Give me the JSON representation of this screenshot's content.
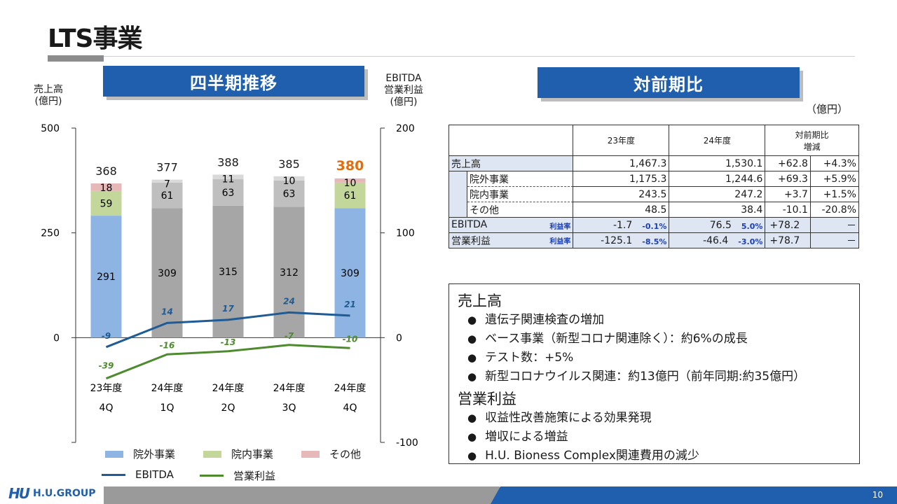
{
  "title": "LTS事業",
  "sections": {
    "left": "四半期推移",
    "right": "対前期比"
  },
  "axis_captions": {
    "left": "売上高\n(億円)",
    "right": "EBITDA\n営業利益\n(億円)"
  },
  "unit_label": "（億円）",
  "chart_data": {
    "type": "bar",
    "categories": [
      [
        "23年度",
        "4Q"
      ],
      [
        "24年度",
        "1Q"
      ],
      [
        "24年度",
        "2Q"
      ],
      [
        "24年度",
        "3Q"
      ],
      [
        "24年度",
        "4Q"
      ]
    ],
    "y_left": {
      "ticks": [
        500,
        250,
        0
      ],
      "range": [
        -250,
        500
      ]
    },
    "y_right": {
      "ticks": [
        200,
        100,
        0,
        -100
      ],
      "range": [
        -100,
        200
      ]
    },
    "stacked_series": [
      {
        "name": "院外事業",
        "color": "#8db4e2",
        "values": [
          291,
          309,
          315,
          312,
          309
        ]
      },
      {
        "name": "院内事業",
        "color": "#c4d79b",
        "values": [
          59,
          61,
          63,
          63,
          61
        ]
      },
      {
        "name": "その他",
        "color": "#e6b8b7",
        "values": [
          18,
          7,
          11,
          10,
          10
        ]
      }
    ],
    "gray_color": "#a6a6a6",
    "totals": [
      "368",
      "377",
      "388",
      "385",
      "380"
    ],
    "line_series": [
      {
        "name": "EBITDA",
        "color": "#1f5b94",
        "values": [
          -9,
          14,
          17,
          24,
          21
        ],
        "labels": [
          "-9",
          "14",
          "17",
          "24",
          "21"
        ]
      },
      {
        "name": "営業利益",
        "color": "#4e8a2e",
        "values": [
          -39,
          -16,
          -13,
          -7,
          -10
        ],
        "labels": [
          "-39",
          "-16",
          "-13",
          "-7",
          "-10"
        ]
      }
    ],
    "highlight_color": "#e46c0a"
  },
  "table": {
    "headers": [
      "23年度",
      "24年度",
      "対前期比\n増減"
    ],
    "rows": [
      {
        "label": "売上高",
        "v23": "1,467.3",
        "v24": "1,530.1",
        "diff": "+62.8",
        "pct": "+4.3%",
        "level": 0
      },
      {
        "label": "院外事業",
        "v23": "1,175.3",
        "v24": "1,244.6",
        "diff": "+69.3",
        "pct": "+5.9%",
        "level": 1
      },
      {
        "label": "院内事業",
        "v23": "243.5",
        "v24": "247.2",
        "diff": "+3.7",
        "pct": "+1.5%",
        "level": 1
      },
      {
        "label": "その他",
        "v23": "48.5",
        "v24": "38.4",
        "diff": "-10.1",
        "pct": "-20.8%",
        "level": 1
      },
      {
        "label": "EBITDA",
        "rate_label": "利益率",
        "v23": "-1.7",
        "r23": "-0.1%",
        "v24": "76.5",
        "r24": "5.0%",
        "diff": "+78.2",
        "pct": "－",
        "level": 2
      },
      {
        "label": "営業利益",
        "rate_label": "利益率",
        "v23": "-125.1",
        "r23": "-8.5%",
        "v24": "-46.4",
        "r24": "-3.0%",
        "diff": "+78.7",
        "pct": "－",
        "level": 2
      }
    ]
  },
  "notes": {
    "h1": "売上高",
    "items1": [
      "遺伝子関連検査の増加",
      "ベース事業（新型コロナ関連除く）：約6%の成長",
      "テスト数：+5%",
      "新型コロナウイルス関連：約13億円（前年同期:約35億円）"
    ],
    "h2": "営業利益",
    "items2": [
      "収益性改善施策による効果発現",
      "増収による増益",
      "H.U. Bioness Complex関連費用の減少"
    ]
  },
  "footer": {
    "brand": "H.U.GROUP",
    "page": "10"
  }
}
